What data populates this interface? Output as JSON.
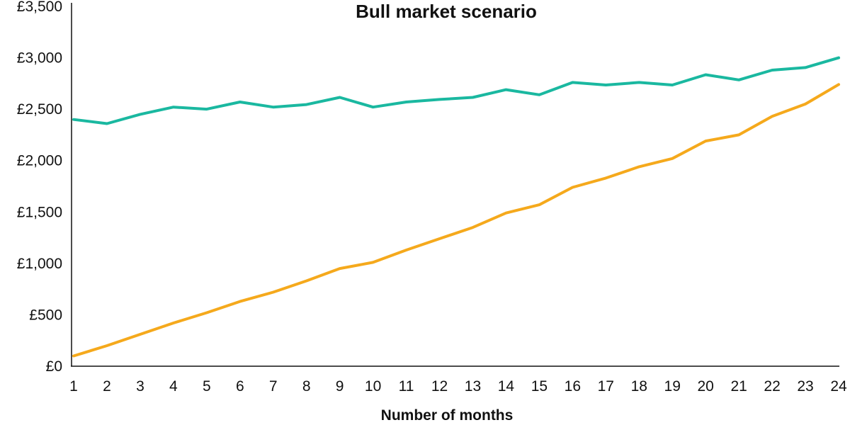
{
  "chart_data": {
    "type": "line",
    "title": "Bull market scenario",
    "xlabel": "Number of months",
    "ylabel": "",
    "x": [
      1,
      2,
      3,
      4,
      5,
      6,
      7,
      8,
      9,
      10,
      11,
      12,
      13,
      14,
      15,
      16,
      17,
      18,
      19,
      20,
      21,
      22,
      23,
      24
    ],
    "ylim": [
      0,
      3500
    ],
    "yticks": [
      0,
      500,
      1000,
      1500,
      2000,
      2500,
      3000,
      3500
    ],
    "ytick_labels": [
      "£0",
      "£500",
      "£1,000",
      "£1,500",
      "£2,000",
      "£2,500",
      "£3,000",
      "£3,500"
    ],
    "grid": false,
    "series": [
      {
        "color": "#1ab8a0",
        "values": [
          2400,
          2360,
          2450,
          2520,
          2500,
          2570,
          2520,
          2545,
          2615,
          2520,
          2570,
          2595,
          2615,
          2690,
          2640,
          2760,
          2735,
          2760,
          2735,
          2835,
          2785,
          2880,
          2905,
          3000
        ]
      },
      {
        "color": "#f5a91c",
        "values": [
          100,
          200,
          310,
          420,
          520,
          630,
          720,
          830,
          950,
          1010,
          1130,
          1240,
          1350,
          1490,
          1570,
          1740,
          1830,
          1940,
          2020,
          2190,
          2250,
          2430,
          2550,
          2740
        ]
      }
    ]
  }
}
